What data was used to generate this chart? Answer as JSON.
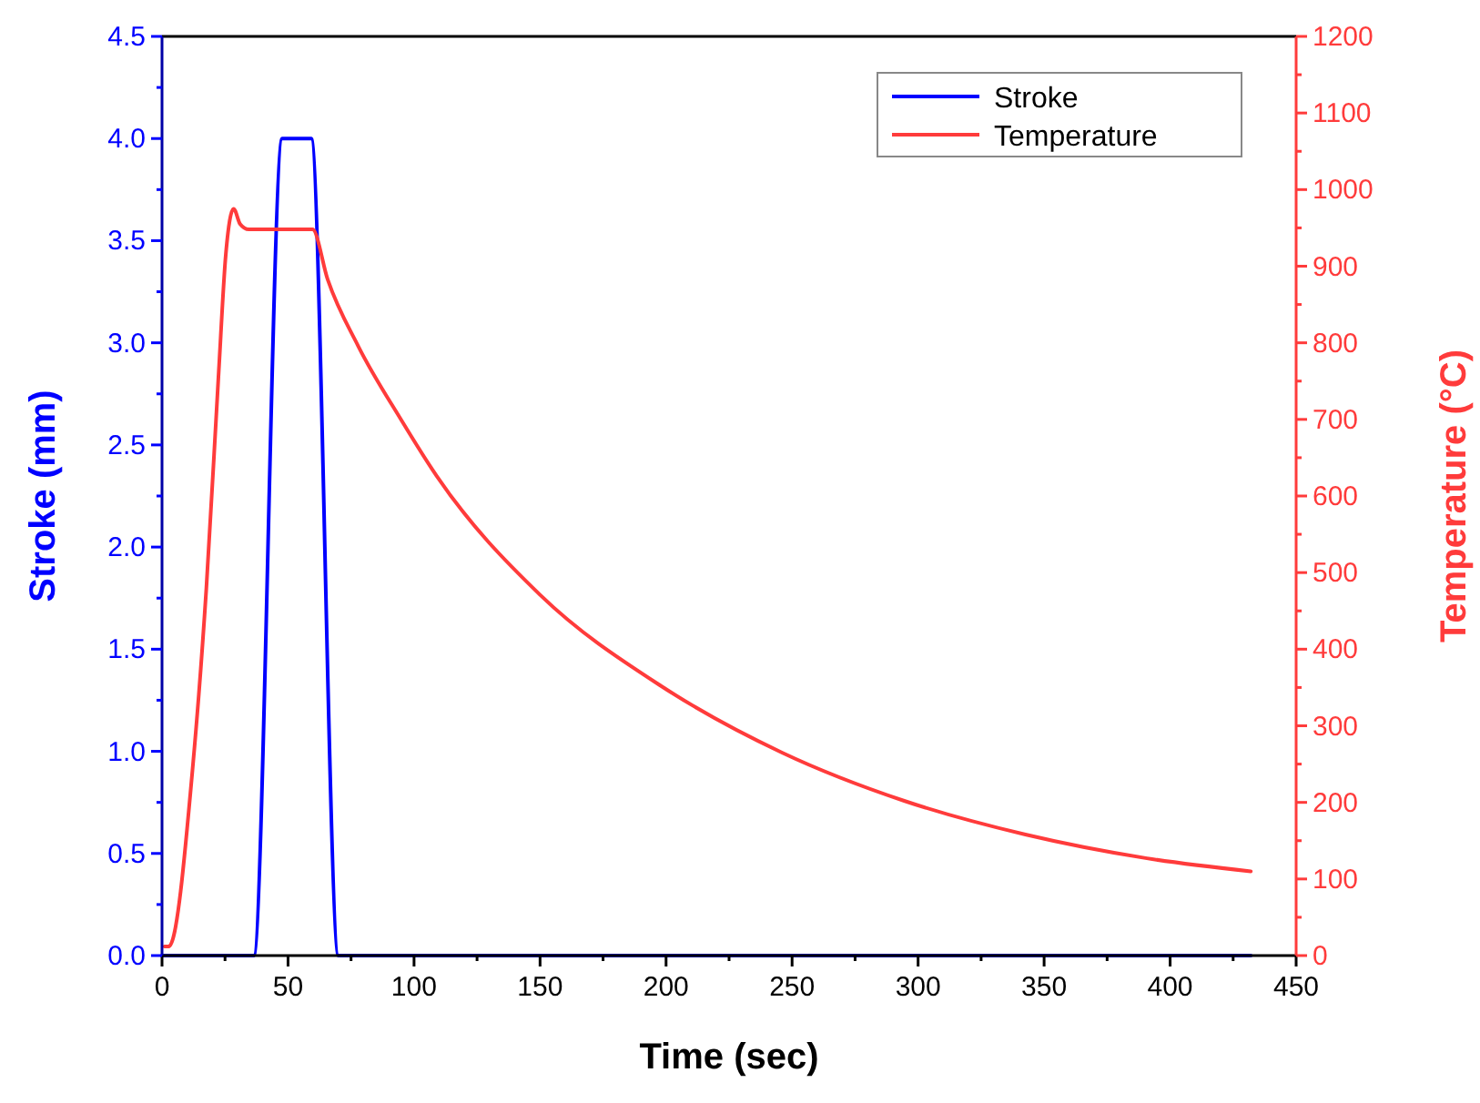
{
  "chart_data": {
    "type": "line",
    "xlabel": "Time (sec)",
    "ylabel": "Stroke (mm)",
    "y2label": "Temperature (°C)",
    "xlim": [
      0,
      450
    ],
    "xticks": [
      0,
      {
        "value": 25,
        "label": null
      },
      50,
      {
        "value": 75,
        "label": null
      },
      100,
      {
        "value": 125,
        "label": null
      },
      150,
      {
        "value": 175,
        "label": null
      },
      200,
      {
        "value": 225,
        "label": null
      },
      250,
      {
        "value": 275,
        "label": null
      },
      300,
      {
        "value": 325,
        "label": null
      },
      350,
      {
        "value": 375,
        "label": null
      },
      400,
      {
        "value": 425,
        "label": null
      },
      450
    ],
    "ylim": [
      0,
      4.5
    ],
    "yticks": [
      {
        "value": 0,
        "label": "0.0"
      },
      {
        "value": 0.25,
        "label": null
      },
      {
        "value": 0.5,
        "label": "0.5"
      },
      {
        "value": 0.75,
        "label": null
      },
      {
        "value": 1,
        "label": "1.0"
      },
      {
        "value": 1.25,
        "label": null
      },
      {
        "value": 1.5,
        "label": "1.5"
      },
      {
        "value": 1.75,
        "label": null
      },
      {
        "value": 2,
        "label": "2.0"
      },
      {
        "value": 2.25,
        "label": null
      },
      {
        "value": 2.5,
        "label": "2.5"
      },
      {
        "value": 2.75,
        "label": null
      },
      {
        "value": 3,
        "label": "3.0"
      },
      {
        "value": 3.25,
        "label": null
      },
      {
        "value": 3.5,
        "label": "3.5"
      },
      {
        "value": 3.75,
        "label": null
      },
      {
        "value": 4,
        "label": "4.0"
      },
      {
        "value": 4.25,
        "label": null
      },
      {
        "value": 4.5,
        "label": "4.5"
      }
    ],
    "y2lim": [
      0,
      1200
    ],
    "y2ticks": [
      0,
      {
        "value": 50,
        "label": null
      },
      100,
      {
        "value": 150,
        "label": null
      },
      200,
      {
        "value": 250,
        "label": null
      },
      300,
      {
        "value": 350,
        "label": null
      },
      400,
      {
        "value": 450,
        "label": null
      },
      500,
      {
        "value": 550,
        "label": null
      },
      600,
      {
        "value": 650,
        "label": null
      },
      700,
      {
        "value": 750,
        "label": null
      },
      800,
      {
        "value": 850,
        "label": null
      },
      900,
      {
        "value": 950,
        "label": null
      },
      1000,
      {
        "value": 1050,
        "label": null
      },
      1100,
      {
        "value": 1150,
        "label": null
      },
      1200
    ],
    "legend": "top right",
    "grid": false,
    "series": [
      {
        "name": "Stroke",
        "color": "#0000ff",
        "x": [
          0,
          36.4,
          47.7,
          59.2,
          70,
          432
        ],
        "values": [
          0,
          0,
          4.0,
          4.0,
          0,
          0
        ]
      },
      {
        "name": "Temperature",
        "color": "#ff3b3b",
        "axis": "y2",
        "x": [
          1,
          2.7,
          12.3,
          17.6,
          22.4,
          25.3,
          28.4,
          31,
          34.4,
          59.7,
          65.7,
          77.8,
          94.6,
          109,
          150,
          198,
          246,
          294.5,
          342.6,
          390.8,
          432
        ],
        "values": [
          12,
          12,
          250,
          480,
          756,
          915,
          975,
          955,
          948,
          948,
          883,
          796,
          701,
          626,
          471,
          352,
          265,
          202,
          158,
          127,
          110
        ]
      }
    ]
  }
}
